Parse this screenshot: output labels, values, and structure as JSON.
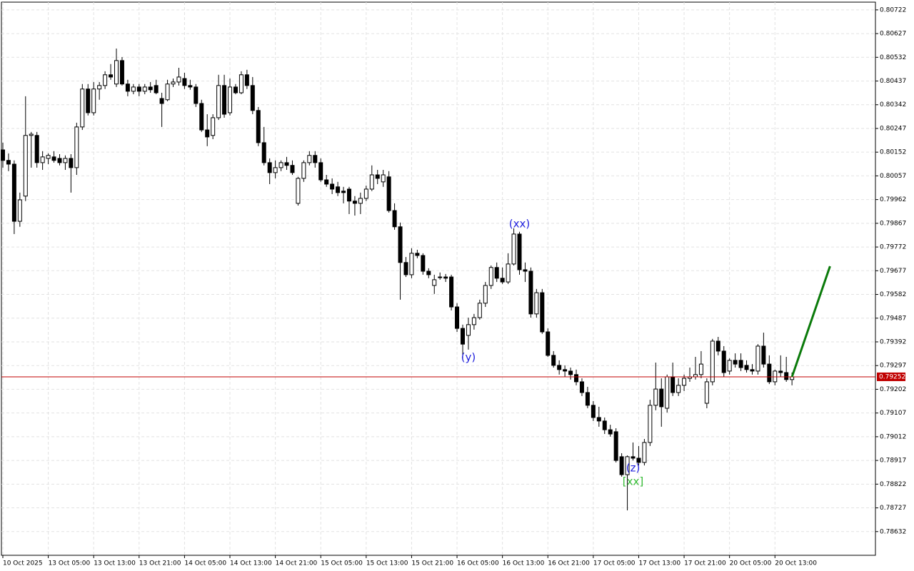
{
  "chart_data": {
    "type": "candlestick",
    "candles": {
      "open": [
        0.80161,
        0.80119,
        0.80104,
        0.79875,
        0.79976,
        0.80219,
        0.80219,
        0.8011,
        0.80127,
        0.80133,
        0.80127,
        0.8011,
        0.80127,
        0.8009,
        0.80253,
        0.80405,
        0.8031,
        0.80405,
        0.80419,
        0.80462,
        0.80425,
        0.80519,
        0.80425,
        0.80396,
        0.80413,
        0.80396,
        0.80413,
        0.80419,
        0.80367,
        0.80362,
        0.80425,
        0.80433,
        0.80447,
        0.80419,
        0.80413,
        0.80347,
        0.80241,
        0.80219,
        0.8029,
        0.80419,
        0.8031,
        0.80413,
        0.8039,
        0.80462,
        0.80419,
        0.80319,
        0.8019,
        0.8011,
        0.8007,
        0.8009,
        0.8011,
        0.80099,
        0.79947,
        0.80047,
        0.8011,
        0.80139,
        0.8011,
        0.80041,
        0.80024,
        0.80013,
        0.79996,
        0.80004,
        0.79956,
        0.79947,
        0.79967,
        0.80004,
        0.80061,
        0.80033,
        0.80053,
        0.79918,
        0.79853,
        0.7971,
        0.79661,
        0.79747,
        0.79738,
        0.79675,
        0.79618,
        0.79652,
        0.79652,
        0.79652,
        0.79532,
        0.79446,
        0.79418,
        0.79461,
        0.79489,
        0.79547,
        0.79618,
        0.7969,
        0.79647,
        0.79632,
        0.79704,
        0.79824,
        0.79681,
        0.79675,
        0.79504,
        0.79589,
        0.79432,
        0.79338,
        0.79298,
        0.79281,
        0.79275,
        0.79261,
        0.79232,
        0.79189,
        0.79138,
        0.79089,
        0.79075,
        0.7904,
        0.79032,
        0.78932,
        0.7886,
        0.78932,
        0.78926,
        0.78909,
        0.78989,
        0.79138,
        0.79203,
        0.79126,
        0.79252,
        0.79189,
        0.79218,
        0.79246,
        0.79252,
        0.79261,
        0.79146,
        0.79232,
        0.79395,
        0.79355,
        0.79275,
        0.79318,
        0.79318,
        0.79298,
        0.79281,
        0.79275,
        0.79375,
        0.79303,
        0.79232,
        0.79275,
        0.79269,
        0.79241
      ],
      "high": [
        0.8019,
        0.80147,
        0.80119,
        0.7999,
        0.80376,
        0.80233,
        0.80233,
        0.80156,
        0.80147,
        0.80156,
        0.80144,
        0.80139,
        0.80144,
        0.8027,
        0.80425,
        0.80425,
        0.80433,
        0.80433,
        0.80476,
        0.80505,
        0.80567,
        0.80533,
        0.80442,
        0.80425,
        0.80425,
        0.80425,
        0.80433,
        0.80442,
        0.8039,
        0.80442,
        0.80447,
        0.8049,
        0.8047,
        0.80442,
        0.80425,
        0.80362,
        0.80304,
        0.80304,
        0.80462,
        0.80462,
        0.80447,
        0.80425,
        0.80476,
        0.80482,
        0.80453,
        0.80333,
        0.80253,
        0.80127,
        0.80119,
        0.80119,
        0.80133,
        0.80119,
        0.80053,
        0.80119,
        0.80156,
        0.80156,
        0.80127,
        0.80061,
        0.80047,
        0.80033,
        0.80013,
        0.80013,
        0.79976,
        0.7999,
        0.80018,
        0.80099,
        0.80081,
        0.80081,
        0.80076,
        0.79947,
        0.7987,
        0.79732,
        0.79767,
        0.79761,
        0.79747,
        0.79687,
        0.79661,
        0.7967,
        0.79664,
        0.79661,
        0.79547,
        0.79461,
        0.79489,
        0.79504,
        0.79561,
        0.79632,
        0.79698,
        0.7971,
        0.7969,
        0.79747,
        0.79847,
        0.79833,
        0.7971,
        0.7969,
        0.79604,
        0.79604,
        0.79446,
        0.79355,
        0.79318,
        0.79298,
        0.79289,
        0.79281,
        0.79246,
        0.79212,
        0.79155,
        0.79132,
        0.79089,
        0.7906,
        0.79046,
        0.78946,
        0.78937,
        0.78989,
        0.78975,
        0.79003,
        0.7916,
        0.79309,
        0.79246,
        0.79261,
        0.79309,
        0.79246,
        0.79261,
        0.79289,
        0.79332,
        0.79355,
        0.79246,
        0.79404,
        0.79412,
        0.79375,
        0.79326,
        0.79346,
        0.79346,
        0.79318,
        0.79303,
        0.79383,
        0.79429,
        0.79338,
        0.79281,
        0.79338,
        0.79332,
        0.79269
      ],
      "low": [
        0.8009,
        0.80076,
        0.79824,
        0.79853,
        0.79956,
        0.8009,
        0.8009,
        0.80081,
        0.80104,
        0.8011,
        0.80099,
        0.80081,
        0.7999,
        0.80061,
        0.80241,
        0.80299,
        0.80299,
        0.80362,
        0.80405,
        0.80442,
        0.80413,
        0.80419,
        0.80376,
        0.80384,
        0.80376,
        0.80384,
        0.8039,
        0.80384,
        0.80253,
        0.80356,
        0.80413,
        0.80419,
        0.80405,
        0.80402,
        0.80333,
        0.80233,
        0.80176,
        0.80204,
        0.80281,
        0.8029,
        0.80299,
        0.80384,
        0.80384,
        0.80405,
        0.80304,
        0.80176,
        0.80099,
        0.80024,
        0.80047,
        0.80076,
        0.80081,
        0.80061,
        0.79938,
        0.80033,
        0.80099,
        0.8009,
        0.80033,
        0.80013,
        0.79984,
        0.79976,
        0.79947,
        0.79904,
        0.79898,
        0.79904,
        0.79956,
        0.79996,
        0.80024,
        0.80013,
        0.7991,
        0.79841,
        0.79561,
        0.79652,
        0.79647,
        0.79727,
        0.79661,
        0.79647,
        0.79584,
        0.79641,
        0.79632,
        0.79518,
        0.79432,
        0.79318,
        0.79361,
        0.79441,
        0.79481,
        0.79532,
        0.79604,
        0.79632,
        0.79624,
        0.79624,
        0.79698,
        0.79661,
        0.79632,
        0.79489,
        0.79489,
        0.79424,
        0.79332,
        0.79289,
        0.79261,
        0.79252,
        0.79241,
        0.79218,
        0.79175,
        0.79126,
        0.79075,
        0.79052,
        0.79023,
        0.79012,
        0.78909,
        0.78852,
        0.78717,
        0.78917,
        0.78897,
        0.78897,
        0.78975,
        0.79118,
        0.79052,
        0.79109,
        0.79175,
        0.79175,
        0.79195,
        0.79232,
        0.79241,
        0.79246,
        0.79126,
        0.79218,
        0.79338,
        0.79252,
        0.79261,
        0.79289,
        0.79275,
        0.79269,
        0.79261,
        0.79261,
        0.79289,
        0.79223,
        0.79218,
        0.79252,
        0.79232,
        0.79218
      ],
      "close": [
        0.80119,
        0.80104,
        0.79875,
        0.79961,
        0.80219,
        0.80224,
        0.8011,
        0.80133,
        0.80139,
        0.80119,
        0.8011,
        0.80127,
        0.8009,
        0.80253,
        0.80405,
        0.8031,
        0.80405,
        0.80419,
        0.80462,
        0.80453,
        0.80519,
        0.80425,
        0.80396,
        0.80413,
        0.80396,
        0.80413,
        0.80402,
        0.8039,
        0.80347,
        0.80425,
        0.80433,
        0.80453,
        0.80419,
        0.80413,
        0.80347,
        0.80241,
        0.80213,
        0.8029,
        0.80419,
        0.80304,
        0.80413,
        0.8039,
        0.80462,
        0.80419,
        0.80319,
        0.8019,
        0.8011,
        0.8007,
        0.8009,
        0.8011,
        0.80099,
        0.8007,
        0.80047,
        0.8011,
        0.80139,
        0.8011,
        0.80041,
        0.80024,
        0.80004,
        0.7999,
        0.7999,
        0.79956,
        0.79947,
        0.79967,
        0.80004,
        0.80061,
        0.80047,
        0.80061,
        0.79918,
        0.79853,
        0.7971,
        0.79661,
        0.79747,
        0.79738,
        0.79675,
        0.79661,
        0.79641,
        0.79652,
        0.79647,
        0.79532,
        0.79446,
        0.79383,
        0.79461,
        0.79489,
        0.79547,
        0.79618,
        0.7969,
        0.79647,
        0.79632,
        0.79704,
        0.79824,
        0.79681,
        0.79675,
        0.79504,
        0.79589,
        0.79432,
        0.79338,
        0.79298,
        0.79281,
        0.79275,
        0.79261,
        0.79232,
        0.79189,
        0.79138,
        0.79089,
        0.79075,
        0.7904,
        0.79023,
        0.78917,
        0.7886,
        0.78932,
        0.78926,
        0.78909,
        0.78989,
        0.79138,
        0.79203,
        0.79132,
        0.79252,
        0.79189,
        0.79218,
        0.79246,
        0.79252,
        0.79261,
        0.79303,
        0.79232,
        0.79395,
        0.79355,
        0.79269,
        0.79318,
        0.79303,
        0.79289,
        0.79281,
        0.79275,
        0.79375,
        0.79303,
        0.79232,
        0.79275,
        0.79269,
        0.79241,
        0.79252
      ]
    },
    "xlim": [
      -0.25,
      153.7
    ],
    "xticks": [
      {
        "value": 0,
        "label": "10 Oct 2025"
      },
      {
        "value": 8,
        "label": "13 Oct 05:00"
      },
      {
        "value": 16,
        "label": "13 Oct 13:00"
      },
      {
        "value": 24,
        "label": "13 Oct 21:00"
      },
      {
        "value": 32,
        "label": "14 Oct 05:00"
      },
      {
        "value": 40,
        "label": "14 Oct 13:00"
      },
      {
        "value": 48,
        "label": "14 Oct 21:00"
      },
      {
        "value": 56,
        "label": "15 Oct 05:00"
      },
      {
        "value": 64,
        "label": "15 Oct 13:00"
      },
      {
        "value": 72,
        "label": "15 Oct 21:00"
      },
      {
        "value": 80,
        "label": "16 Oct 05:00"
      },
      {
        "value": 88,
        "label": "16 Oct 13:00"
      },
      {
        "value": 96,
        "label": "16 Oct 21:00"
      },
      {
        "value": 104,
        "label": "17 Oct 05:00"
      },
      {
        "value": 112,
        "label": "17 Oct 13:00"
      },
      {
        "value": 120,
        "label": "17 Oct 21:00"
      },
      {
        "value": 128,
        "label": "20 Oct 05:00"
      },
      {
        "value": 136,
        "label": "20 Oct 13:00"
      }
    ],
    "ylim": [
      0.78537,
      0.80753
    ],
    "yticks": [
      0.80722,
      0.80627,
      0.80532,
      0.80437,
      0.80342,
      0.80247,
      0.80152,
      0.80057,
      0.79962,
      0.79867,
      0.79772,
      0.79677,
      0.79582,
      0.79487,
      0.79392,
      0.79297,
      0.79202,
      0.79107,
      0.79012,
      0.78917,
      0.78822,
      0.78727,
      0.78632
    ],
    "grid": true,
    "last_price": 0.79252,
    "last_price_color": "#c00000",
    "projection": {
      "x": [
        139,
        145.7
      ],
      "values": [
        0.79252,
        0.79695
      ],
      "color": "#0a7a0a"
    },
    "annotations": [
      {
        "text": "(xx)",
        "color": "#2222dd",
        "at": 91,
        "side": "above"
      },
      {
        "text": "(y)",
        "color": "#2222dd",
        "at": 82,
        "side": "below"
      },
      {
        "text": "(z)",
        "color": "#2222dd",
        "at": 111,
        "side": "below"
      },
      {
        "text": "[xx]",
        "color": "#33bb33",
        "at": 111,
        "side": "below"
      }
    ]
  }
}
